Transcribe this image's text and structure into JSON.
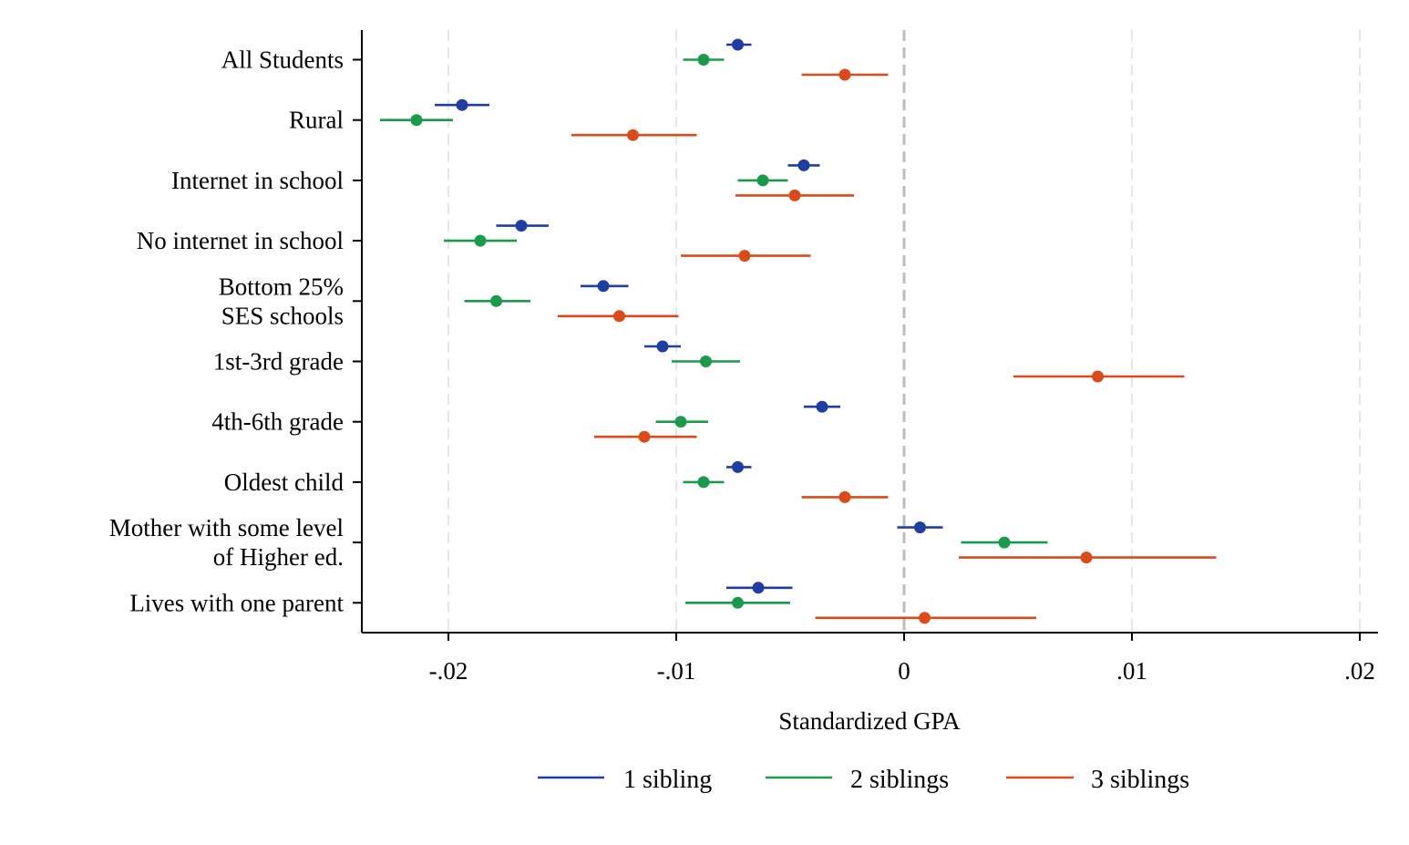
{
  "chart_data": {
    "type": "coefficient-plot",
    "title": "",
    "xlabel": "Standardized GPA",
    "ylabel": "",
    "xlim": [
      -0.0238,
      0.0208
    ],
    "xticks": [
      -0.02,
      -0.01,
      0,
      0.01,
      0.02
    ],
    "xtick_labels": [
      "-.02",
      "-.01",
      "0",
      ".01",
      ".02"
    ],
    "grid": "vertical dashed at ticks",
    "reference_line": 0,
    "legend_position": "bottom",
    "categories": [
      [
        "All Students"
      ],
      [
        "Rural"
      ],
      [
        "Internet in school"
      ],
      [
        "No internet in school"
      ],
      [
        "Bottom 25%",
        "SES schools"
      ],
      [
        "1st-3rd grade"
      ],
      [
        "4th-6th grade"
      ],
      [
        "Oldest child"
      ],
      [
        "Mother with some level",
        "of Higher ed."
      ],
      [
        "Lives with one parent"
      ]
    ],
    "series": [
      {
        "name": "1 sibling",
        "color": "#1f3ea3",
        "points": [
          {
            "est": -0.0073,
            "lo": -0.0078,
            "hi": -0.0067
          },
          {
            "est": -0.0194,
            "lo": -0.0206,
            "hi": -0.0182
          },
          {
            "est": -0.0044,
            "lo": -0.0051,
            "hi": -0.0037
          },
          {
            "est": -0.0168,
            "lo": -0.0179,
            "hi": -0.0156
          },
          {
            "est": -0.0132,
            "lo": -0.0142,
            "hi": -0.0121
          },
          {
            "est": -0.0106,
            "lo": -0.0114,
            "hi": -0.0098
          },
          {
            "est": -0.0036,
            "lo": -0.0044,
            "hi": -0.0028
          },
          {
            "est": -0.0073,
            "lo": -0.0078,
            "hi": -0.0067
          },
          {
            "est": 0.0007,
            "lo": -0.0003,
            "hi": 0.0017
          },
          {
            "est": -0.0064,
            "lo": -0.0078,
            "hi": -0.0049
          }
        ]
      },
      {
        "name": "2 siblings",
        "color": "#1a9a4a",
        "points": [
          {
            "est": -0.0088,
            "lo": -0.0097,
            "hi": -0.0079
          },
          {
            "est": -0.0214,
            "lo": -0.023,
            "hi": -0.0198
          },
          {
            "est": -0.0062,
            "lo": -0.0073,
            "hi": -0.0051
          },
          {
            "est": -0.0186,
            "lo": -0.0202,
            "hi": -0.017
          },
          {
            "est": -0.0179,
            "lo": -0.0193,
            "hi": -0.0164
          },
          {
            "est": -0.0087,
            "lo": -0.0102,
            "hi": -0.0072
          },
          {
            "est": -0.0098,
            "lo": -0.0109,
            "hi": -0.0086
          },
          {
            "est": -0.0088,
            "lo": -0.0097,
            "hi": -0.0079
          },
          {
            "est": 0.0044,
            "lo": 0.0025,
            "hi": 0.0063
          },
          {
            "est": -0.0073,
            "lo": -0.0096,
            "hi": -0.005
          }
        ]
      },
      {
        "name": "3 siblings",
        "color": "#dd4a1a",
        "points": [
          {
            "est": -0.0026,
            "lo": -0.0045,
            "hi": -0.0007
          },
          {
            "est": -0.0119,
            "lo": -0.0146,
            "hi": -0.0091
          },
          {
            "est": -0.0048,
            "lo": -0.0074,
            "hi": -0.0022
          },
          {
            "est": -0.007,
            "lo": -0.0098,
            "hi": -0.0041
          },
          {
            "est": -0.0125,
            "lo": -0.0152,
            "hi": -0.0099
          },
          {
            "est": 0.0085,
            "lo": 0.0048,
            "hi": 0.0123
          },
          {
            "est": -0.0114,
            "lo": -0.0136,
            "hi": -0.0091
          },
          {
            "est": -0.0026,
            "lo": -0.0045,
            "hi": -0.0007
          },
          {
            "est": 0.008,
            "lo": 0.0024,
            "hi": 0.0137
          },
          {
            "est": 0.0009,
            "lo": -0.0039,
            "hi": 0.0058
          }
        ]
      }
    ]
  }
}
